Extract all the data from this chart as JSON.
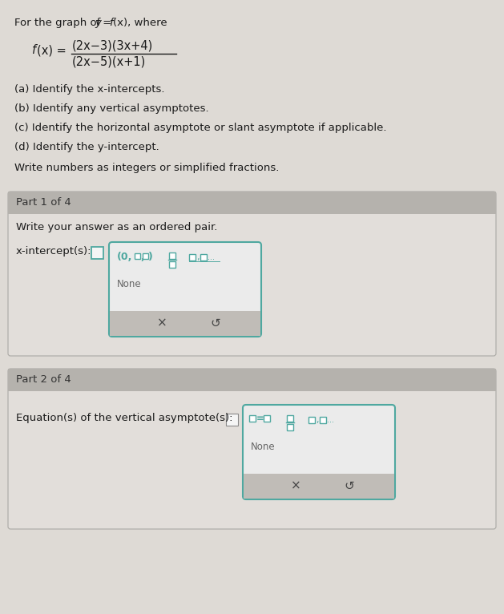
{
  "bg_outer": "#c8c5c0",
  "bg_top": "#dedad5",
  "panel_bg": "#e2deda",
  "header_bg": "#b5b2ad",
  "dropdown_bg": "#ebebeb",
  "dropdown_border": "#4fa8a0",
  "teal_color": "#4fa8a0",
  "button_bar_bg": "#c0bcb7",
  "text_dark": "#1a1a1a",
  "text_mid": "#444444",
  "text_light": "#666666",
  "part1_header": "Part 1 of 4",
  "part1_instruction": "Write your answer as an ordered pair.",
  "part1_label": "x-intercept(s):",
  "part1_none": "None",
  "part2_header": "Part 2 of 4",
  "part2_label": "Equation(s) of the vertical asymptote(s):",
  "part2_none": "None"
}
